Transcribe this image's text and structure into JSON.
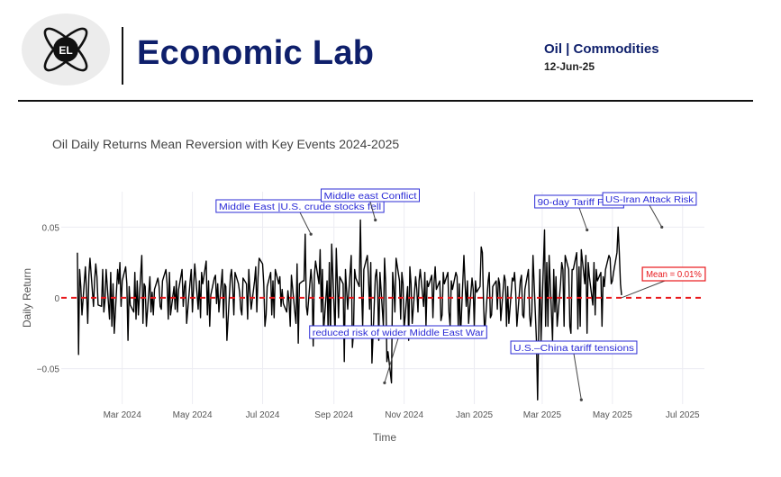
{
  "header": {
    "logo_text": "EL",
    "brand": "Economic Lab",
    "topic": "Oil | Commodities",
    "date": "12-Jun-25"
  },
  "colors": {
    "brand": "#0e1f6b",
    "series_line": "#000000",
    "mean_line": "#e8171b",
    "annotation": "#2b2bd6",
    "mean_annotation": "#e8171b"
  },
  "chart_data": {
    "type": "line",
    "title": "Oil Daily Returns Mean Reversion with Key Events 2024-2025",
    "xlabel": "Time",
    "ylabel": "Daily Return",
    "x_range": [
      "2024-01-08",
      "2025-07-20"
    ],
    "x_ticks": [
      "Mar 2024",
      "May 2024",
      "Jul 2024",
      "Sep 2024",
      "Nov 2024",
      "Jan 2025",
      "Mar 2025",
      "May 2025",
      "Jul 2025"
    ],
    "y_range": [
      -0.075,
      0.075
    ],
    "y_ticks": [
      {
        "value": 0.05,
        "label": "0.05"
      },
      {
        "value": 0,
        "label": "0"
      },
      {
        "value": -0.05,
        "label": "−0.05"
      }
    ],
    "grid": true,
    "series": [
      {
        "start": "2024-01-22",
        "frequency": "business-daily",
        "values": [
          0.032,
          -0.04,
          0.02,
          0.008,
          -0.012,
          0.022,
          0.004,
          -0.018,
          0.016,
          0.028,
          -0.006,
          0.012,
          0.024,
          0.015,
          -0.005,
          -0.006,
          0.02,
          -0.01,
          -0.002,
          0.02,
          -0.015,
          0.018,
          -0.02,
          0.01,
          -0.025,
          0.02,
          0.01,
          0.025,
          -0.006,
          0.012,
          0.022,
          0.01,
          -0.03,
          0.008,
          -0.005,
          -0.01,
          0.018,
          -0.015,
          0.012,
          -0.012,
          0.03,
          -0.018,
          0.01,
          0.008,
          -0.02,
          0.015,
          -0.01,
          0.004,
          -0.012,
          0.006,
          0.014,
          0.008,
          -0.006,
          -0.008,
          0.012,
          0.02,
          0.01,
          -0.015,
          0.018,
          -0.012,
          0.008,
          -0.008,
          0.012,
          -0.01,
          0.006,
          0.02,
          -0.006,
          0.008,
          0.012,
          -0.018,
          0.012,
          0.02,
          -0.01,
          0.008,
          0.024,
          -0.008,
          0.012,
          -0.014,
          0.018,
          0.01,
          0.026,
          -0.012,
          0.012,
          -0.02,
          0.002,
          0.014,
          0.016,
          -0.004,
          0.01,
          -0.01,
          0.02,
          -0.014,
          0.01,
          0.008,
          -0.03,
          0.015,
          0.02,
          0.008,
          -0.012,
          0.018,
          0.01,
          0.004,
          -0.008,
          -0.012,
          0.014,
          0.01,
          -0.015,
          0.02,
          0.004,
          -0.008,
          0.012,
          0.022,
          -0.01,
          0.014,
          0.028,
          0.024,
          0.01,
          -0.02,
          -0.012,
          0.008,
          0.018,
          -0.012,
          0.012,
          -0.014,
          0.02,
          0.01,
          0.015,
          -0.006,
          0.006,
          -0.004,
          -0.01,
          0.005,
          -0.003,
          -0.02,
          0.016,
          -0.01,
          -0.018,
          0.024,
          -0.032,
          0.01,
          0.012,
          0.012,
          0.045,
          -0.006,
          -0.012,
          0.02,
          0.01,
          -0.034,
          0.016,
          0.026,
          0.01,
          0.034,
          -0.01,
          0.02,
          -0.024,
          0.012,
          -0.025,
          0.025,
          -0.028,
          0.038,
          -0.026,
          0.035,
          0.012,
          -0.014,
          0.015,
          0.01,
          -0.045,
          0.02,
          0.005,
          -0.008,
          0.03,
          -0.035,
          -0.025,
          0.02,
          0.014,
          0.008,
          0.055,
          0.005,
          -0.02,
          0.02,
          0.03,
          0.015,
          -0.008,
          0.025,
          -0.046,
          0.015,
          0.02,
          0.004,
          -0.03,
          0.018,
          -0.02,
          0.028,
          0.01,
          -0.045,
          -0.038,
          -0.06,
          0.018,
          0.008,
          -0.01,
          0.028,
          0.012,
          -0.015,
          0.018,
          0.01,
          -0.022,
          0.008,
          -0.03,
          0.022,
          0.01,
          -0.018,
          0.015,
          0.006,
          -0.01,
          0.012,
          0.02,
          -0.006,
          0.018,
          -0.02,
          0.012,
          0.008,
          0.016,
          -0.014,
          0.01,
          0.022,
          0.006,
          0.012,
          -0.016,
          -0.012,
          0.018,
          0.01,
          0.018,
          -0.01,
          -0.02,
          0.012,
          0.006,
          0.018,
          0.015,
          -0.02,
          0.01,
          -0.028,
          0.03,
          0.01,
          -0.006,
          0.012,
          -0.018,
          0.014,
          0.006,
          -0.02,
          0.012,
          0.004,
          0.008,
          0.036,
          0.032,
          -0.004,
          -0.025,
          0.012,
          0.018,
          -0.014,
          -0.012,
          0.008,
          0.012,
          -0.008,
          0.014,
          0.01,
          -0.016,
          0.016,
          0.012,
          -0.02,
          0.008,
          -0.018,
          0.014,
          0.012,
          0.018,
          0.004,
          -0.02,
          0.012,
          0.016,
          -0.012,
          -0.014,
          0.006,
          0.02,
          -0.012,
          -0.02,
          -0.01,
          0.03,
          -0.03,
          -0.072,
          -0.02,
          0.02,
          -0.03,
          0.048,
          -0.02,
          0.025,
          -0.02,
          0.03,
          -0.03,
          0.02,
          -0.01,
          0.015,
          -0.02,
          0.01,
          0.025,
          0.02,
          -0.02,
          0.03,
          0.02,
          -0.02,
          -0.025,
          0.02,
          0.02,
          0.032,
          -0.022,
          0.022,
          -0.02,
          0.034,
          0.01,
          0.03,
          -0.025,
          0.025,
          0.015,
          -0.005,
          0.025,
          -0.012,
          0.02,
          0.012,
          0.018,
          -0.02,
          0.015,
          0.008,
          0.02,
          0.03,
          0.028,
          0.01,
          0.012,
          0.018,
          0.032,
          0.05,
          0.032,
          0.01,
          0.002
        ]
      }
    ],
    "mean": 0.0001,
    "mean_label": "Mean = 0.01%",
    "annotations": [
      {
        "text": "Middle East |U.S. crude stocks fell",
        "x": "2024-08-12",
        "y": 0.045
      },
      {
        "text": "Middle east Conflict",
        "x": "2024-10-07",
        "y": 0.055
      },
      {
        "text": "reduced risk of wider Middle East War",
        "x": "2024-10-15",
        "y": -0.06
      },
      {
        "text": "90-day Tariff Paus",
        "x": "2025-04-09",
        "y": 0.048
      },
      {
        "text": "U.S.–China tariff tensions",
        "x": "2025-04-04",
        "y": -0.072
      },
      {
        "text": "US-Iran Attack Risk",
        "x": "2025-06-13",
        "y": 0.05
      }
    ]
  }
}
